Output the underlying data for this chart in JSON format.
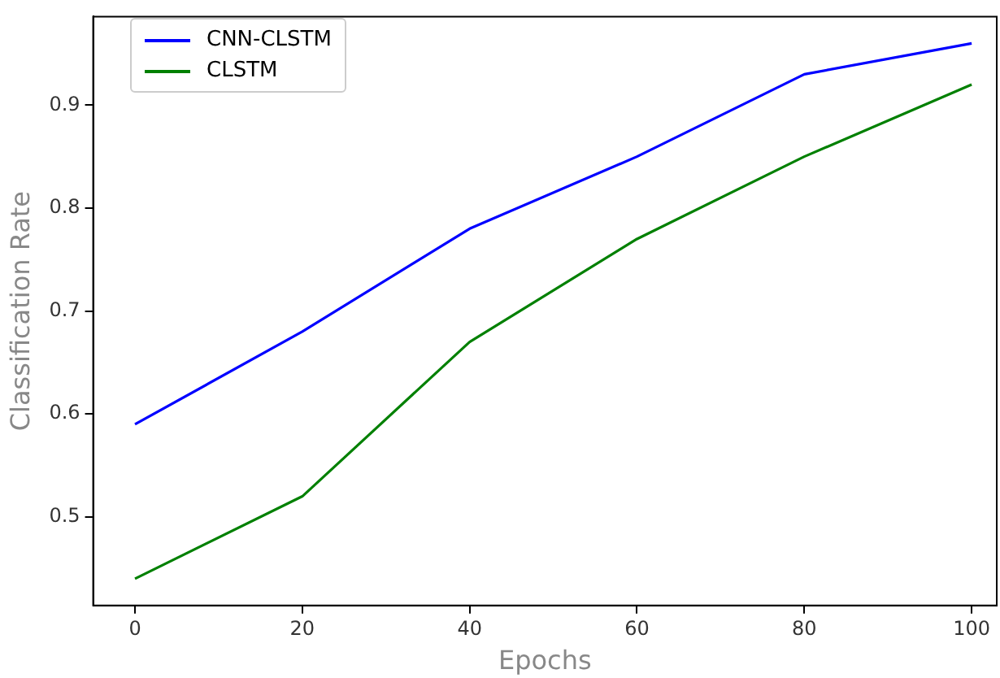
{
  "chart_data": {
    "type": "line",
    "xlabel": "Epochs",
    "ylabel": "Classification Rate",
    "x": [
      0,
      20,
      40,
      60,
      80,
      100
    ],
    "series": [
      {
        "name": "CNN-CLSTM",
        "color": "#0000ff",
        "values": [
          0.59,
          0.68,
          0.78,
          0.85,
          0.93,
          0.96
        ]
      },
      {
        "name": "CLSTM",
        "color": "#008000",
        "values": [
          0.44,
          0.52,
          0.67,
          0.77,
          0.85,
          0.92
        ]
      }
    ],
    "xlim": [
      -5,
      103
    ],
    "xticks": [
      0,
      20,
      40,
      60,
      80,
      100
    ],
    "ylim": [
      0.414,
      0.986
    ],
    "yticks": [
      0.5,
      0.6,
      0.7,
      0.8,
      0.9
    ],
    "grid": false,
    "legend": "top left",
    "marker": "none",
    "line_style": "solid"
  }
}
